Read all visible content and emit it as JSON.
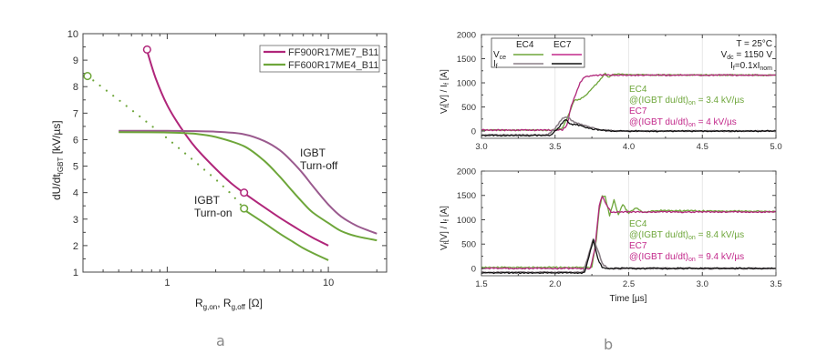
{
  "captions": {
    "a": "a",
    "b": "b"
  },
  "colors": {
    "magenta": "#b0267a",
    "green": "#6ea63a",
    "purple": "#9a5a8e",
    "black": "#111111",
    "grey": "#8a7f86"
  },
  "chart_data": [
    {
      "type": "line",
      "panel": "a",
      "title": "",
      "xlabel": "R_g,on, R_g,off [Ω]",
      "xlabel_parts": {
        "main1": "R",
        "sub1": "g,on",
        "sep": ", ",
        "main2": "R",
        "sub2": "g,off",
        "unit": " [Ω]"
      },
      "ylabel": "dU/dt_IGBT [kV/µs]",
      "ylabel_parts": {
        "main": "dU/dt",
        "sub": "IGBT",
        "unit": " [kV/µs]"
      },
      "xscale": "log",
      "xlim": [
        0.3,
        23
      ],
      "ylim": [
        1,
        10
      ],
      "xticks": [
        1,
        10
      ],
      "xtick_labels": [
        "1",
        "10"
      ],
      "yticks": [
        1,
        2,
        3,
        4,
        5,
        6,
        7,
        8,
        9,
        10
      ],
      "ytick_labels": [
        "1",
        "2",
        "3",
        "4",
        "5",
        "6",
        "7",
        "8",
        "9",
        "10"
      ],
      "legend": {
        "position": "top-right",
        "entries": [
          "FF900R17ME7_B11",
          "FF600R17ME4_B11"
        ]
      },
      "annotations": [
        {
          "text": [
            "IGBT",
            "Turn-off"
          ],
          "x": 8.2,
          "y": 5.1
        },
        {
          "text": [
            "IGBT",
            "Turn-on"
          ],
          "x": 1.75,
          "y": 3.6
        }
      ],
      "series": [
        {
          "name": "FF900R17ME7_B11 turn-on",
          "legend": "FF900R17ME7_B11",
          "color": "magenta",
          "style": "solid",
          "x": [
            0.75,
            0.85,
            1.0,
            1.2,
            1.5,
            2.0,
            2.5,
            3.0,
            4.0,
            5.0,
            6.0,
            7.0,
            8.0,
            10.0
          ],
          "y": [
            9.35,
            8.3,
            7.3,
            6.5,
            5.7,
            4.9,
            4.35,
            3.98,
            3.45,
            3.05,
            2.75,
            2.5,
            2.3,
            2.0
          ],
          "markers": [
            {
              "x": 0.75,
              "y": 9.4
            },
            {
              "x": 3.0,
              "y": 4.0
            }
          ]
        },
        {
          "name": "FF600R17ME4_B11 turn-on (extrapolated)",
          "color": "green",
          "style": "dotted",
          "x": [
            0.32,
            0.5,
            0.7,
            1.0,
            1.5,
            2.0,
            2.5,
            3.0
          ],
          "y": [
            8.4,
            7.5,
            6.8,
            6.05,
            5.15,
            4.5,
            3.95,
            3.4
          ],
          "markers": [
            {
              "x": 0.32,
              "y": 8.4
            }
          ]
        },
        {
          "name": "FF600R17ME4_B11 turn-on",
          "legend": "FF600R17ME4_B11",
          "color": "green",
          "style": "solid",
          "x": [
            3.0,
            4.0,
            5.0,
            6.0,
            7.0,
            8.0,
            10.0
          ],
          "y": [
            3.35,
            2.85,
            2.45,
            2.15,
            1.9,
            1.72,
            1.45
          ],
          "markers": [
            {
              "x": 3.0,
              "y": 3.4
            }
          ]
        },
        {
          "name": "FF900R17ME7_B11 turn-off",
          "color": "purple",
          "style": "solid",
          "x": [
            0.5,
            1.0,
            2.0,
            3.0,
            4.0,
            5.0,
            6.0,
            7.0,
            8.0,
            10.0,
            12.0,
            15.0,
            20.0
          ],
          "y": [
            6.33,
            6.33,
            6.3,
            6.2,
            5.95,
            5.6,
            5.15,
            4.7,
            4.25,
            3.55,
            3.1,
            2.75,
            2.45
          ]
        },
        {
          "name": "FF600R17ME4_B11 turn-off",
          "color": "green",
          "style": "solid",
          "x": [
            0.5,
            1.0,
            1.5,
            2.0,
            3.0,
            4.0,
            5.0,
            6.0,
            7.0,
            8.0,
            10.0,
            12.0,
            15.0,
            20.0
          ],
          "y": [
            6.28,
            6.27,
            6.22,
            6.1,
            5.75,
            5.2,
            4.6,
            4.05,
            3.6,
            3.25,
            2.85,
            2.55,
            2.35,
            2.2
          ]
        }
      ]
    },
    {
      "type": "line",
      "panel": "b-top",
      "xlabel": "",
      "ylabel": "V_f[V] / I_f [A]",
      "ylabel_parts": {
        "v": "V",
        "vsub": "f",
        "mid": "[V] / I",
        "isub": "f",
        "end": " [A]"
      },
      "xlim": [
        3.0,
        5.0
      ],
      "ylim": [
        -150,
        2000
      ],
      "xticks": [
        3.0,
        3.5,
        4.0,
        4.5,
        5.0
      ],
      "xtick_labels": [
        "3.0",
        "3.5",
        "4.0",
        "4.5",
        "5.0"
      ],
      "yticks": [
        0,
        500,
        1000,
        1500,
        2000
      ],
      "ytick_labels": [
        "0",
        "500",
        "1000",
        "1500",
        "2000"
      ],
      "legend": {
        "position": "top-left",
        "columns": [
          "EC4",
          "EC7"
        ],
        "rows": [
          {
            "main": "V",
            "sub": "ce"
          },
          {
            "main": "I",
            "sub": "f"
          }
        ]
      },
      "conditions": {
        "temp": "T = 25°C",
        "vdc_main": "V",
        "vdc_sub": "dc",
        "vdc_val": " = 1150 V",
        "if_main": "I",
        "if_sub": "f",
        "if_mid": "=0.1xI",
        "if_sub2": "nom"
      },
      "annotations": [
        {
          "label": "EC4",
          "prefix": "@(IGBT du/dt)",
          "sub": "on",
          "suffix": " = 3.4 kV/µs",
          "color": "green"
        },
        {
          "label": "EC7",
          "prefix": "@(IGBT du/dt)",
          "sub": "on",
          "suffix": " = 4 kV/µs",
          "color": "magenta"
        }
      ],
      "series": [
        {
          "name": "EC4 Vce",
          "color": "green",
          "x": [
            3.0,
            3.5,
            3.55,
            3.6,
            3.63,
            3.66,
            3.7,
            3.75,
            3.8,
            3.84,
            3.86,
            3.9,
            4.0,
            5.0
          ],
          "y": [
            20,
            20,
            60,
            400,
            640,
            650,
            720,
            880,
            1040,
            1200,
            1120,
            1180,
            1165,
            1160
          ]
        },
        {
          "name": "EC7 Vce",
          "color": "magenta",
          "x": [
            3.0,
            3.55,
            3.58,
            3.61,
            3.64,
            3.67,
            3.7,
            3.75,
            3.8,
            4.0,
            5.0
          ],
          "y": [
            20,
            20,
            120,
            520,
            760,
            1000,
            1120,
            1150,
            1160,
            1160,
            1160
          ]
        },
        {
          "name": "EC4 If",
          "color": "grey",
          "x": [
            3.0,
            3.45,
            3.5,
            3.55,
            3.58,
            3.62,
            3.66,
            3.72,
            3.8,
            3.9,
            5.0
          ],
          "y": [
            -80,
            -80,
            60,
            260,
            300,
            200,
            150,
            100,
            30,
            0,
            0
          ]
        },
        {
          "name": "EC7 If",
          "color": "black",
          "x": [
            3.0,
            3.47,
            3.52,
            3.57,
            3.61,
            3.65,
            3.68,
            3.72,
            3.8,
            3.9,
            5.0
          ],
          "y": [
            -90,
            -90,
            60,
            240,
            140,
            130,
            110,
            60,
            20,
            0,
            0
          ]
        }
      ]
    },
    {
      "type": "line",
      "panel": "b-bottom",
      "xlabel": "Time [µs]",
      "ylabel": "V_f[V] / I_f [A]",
      "xlim": [
        1.5,
        3.5
      ],
      "ylim": [
        -150,
        2000
      ],
      "xticks": [
        1.5,
        2.0,
        2.5,
        3.0,
        3.5
      ],
      "xtick_labels": [
        "1.5",
        "2.0",
        "2.5",
        "3.0",
        "3.5"
      ],
      "yticks": [
        0,
        500,
        1000,
        1500,
        2000
      ],
      "ytick_labels": [
        "0",
        "500",
        "1000",
        "1500",
        "2000"
      ],
      "annotations": [
        {
          "label": "EC4",
          "prefix": "@(IGBT du/dt)",
          "sub": "on",
          "suffix": " = 8.4 kV/µs",
          "color": "green"
        },
        {
          "label": "EC7",
          "prefix": "@(IGBT du/dt)",
          "sub": "on",
          "suffix": " = 9.4 kV/µs",
          "color": "magenta"
        }
      ],
      "series": [
        {
          "name": "EC4 Vce",
          "color": "green",
          "ringing": true,
          "x": [
            1.5,
            2.25,
            2.28,
            2.3,
            2.32,
            2.34,
            2.37,
            2.4,
            2.43,
            2.46,
            2.5,
            2.55,
            2.6,
            2.7,
            3.5
          ],
          "y": [
            20,
            20,
            600,
            1200,
            1490,
            1480,
            1080,
            1400,
            1100,
            1320,
            1130,
            1250,
            1150,
            1190,
            1170
          ]
        },
        {
          "name": "EC7 Vce",
          "color": "magenta",
          "x": [
            1.5,
            2.24,
            2.27,
            2.3,
            2.32,
            2.35,
            2.38,
            2.5,
            3.5
          ],
          "y": [
            0,
            0,
            400,
            1300,
            1480,
            1300,
            1160,
            1160,
            1160
          ]
        },
        {
          "name": "EC4 If",
          "color": "grey",
          "x": [
            1.5,
            2.19,
            2.22,
            2.26,
            2.29,
            2.32,
            2.36,
            3.5
          ],
          "y": [
            -80,
            -80,
            200,
            610,
            380,
            100,
            0,
            0
          ]
        },
        {
          "name": "EC7 If",
          "color": "black",
          "x": [
            1.5,
            2.2,
            2.23,
            2.26,
            2.29,
            2.32,
            2.35,
            3.5
          ],
          "y": [
            -90,
            -90,
            250,
            580,
            200,
            20,
            0,
            0
          ]
        }
      ]
    }
  ]
}
